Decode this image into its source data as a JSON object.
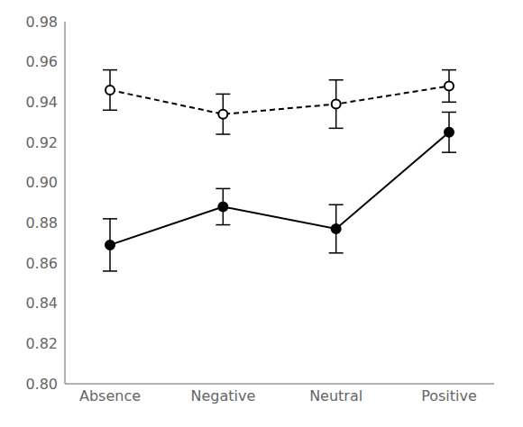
{
  "chart_data": {
    "type": "line",
    "categories": [
      "Absence",
      "Negative",
      "Neutral",
      "Positive"
    ],
    "series": [
      {
        "color": "#000000",
        "line_style": "solid",
        "marker": "circle",
        "values": [
          0.869,
          0.888,
          0.877,
          0.925
        ],
        "errors": [
          0.013,
          0.009,
          0.012,
          0.01
        ]
      },
      {
        "color": "#000000",
        "line_style": "dashed",
        "marker": "open_circle",
        "values": [
          0.946,
          0.934,
          0.939,
          0.948
        ],
        "errors": [
          0.01,
          0.01,
          0.012,
          0.008
        ]
      }
    ],
    "ylim": [
      0.8,
      0.98
    ],
    "yticks": [
      {
        "value": 0.8,
        "label": "0.80"
      },
      0.82,
      0.84,
      0.86,
      0.88,
      {
        "value": 0.9,
        "label": "0.90"
      },
      0.92,
      0.94,
      0.96,
      {
        "value": 0.98,
        "label": "0.98"
      }
    ],
    "grid": false
  }
}
